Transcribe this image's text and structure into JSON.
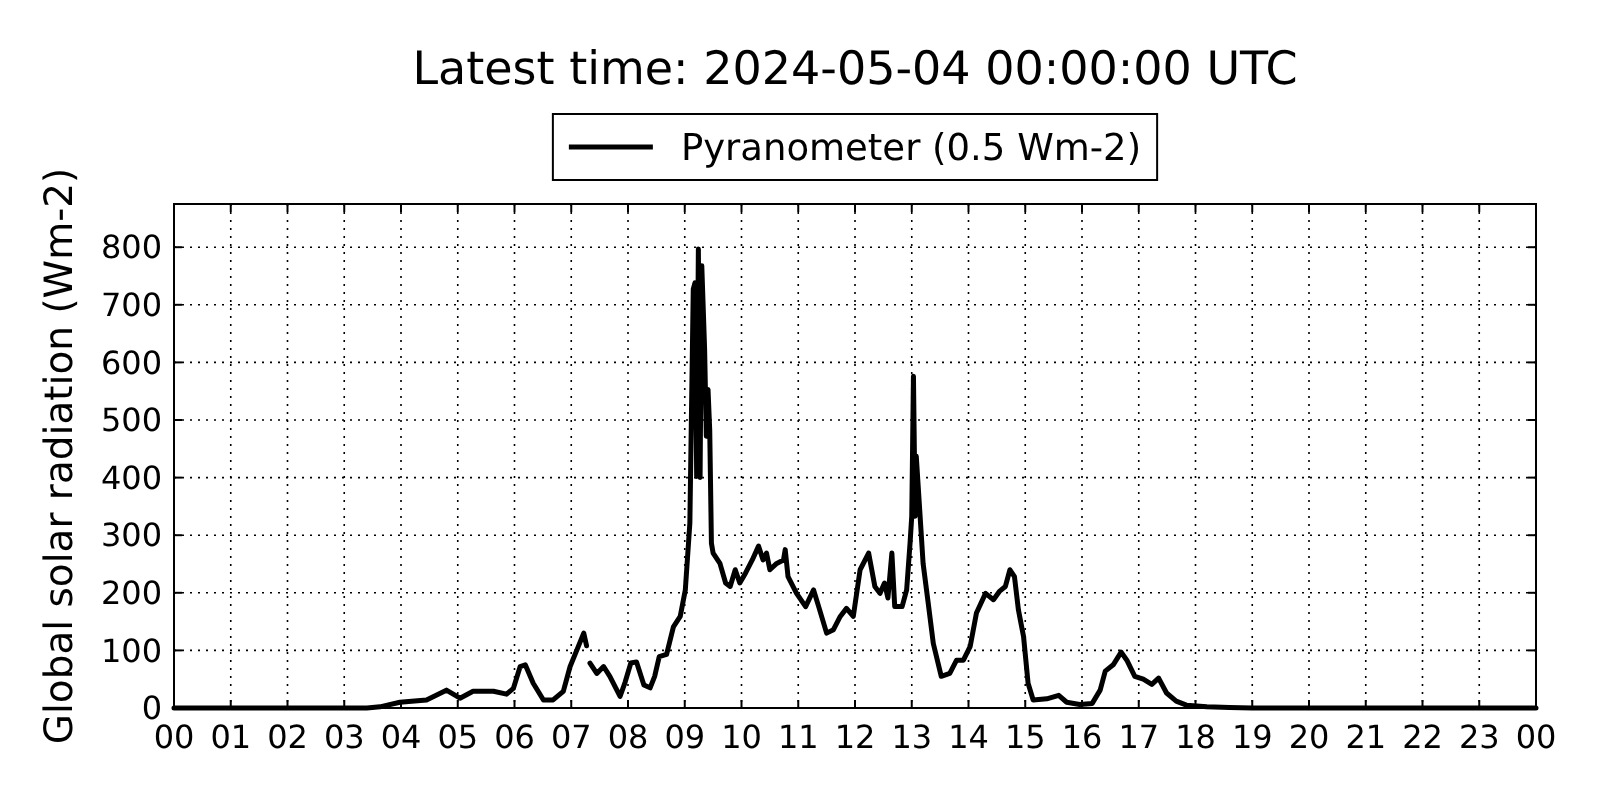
{
  "chart_data": {
    "type": "line",
    "title": "Latest time: 2024-05-04 00:00:00 UTC",
    "ylabel": "Global solar radiation (Wm-2)",
    "x": [
      0,
      1,
      2,
      3,
      3.4,
      3.63,
      3.98,
      4.45,
      4.8,
      5.04,
      5.27,
      5.63,
      5.86,
      5.98,
      6.1,
      6.19,
      6.33,
      6.51,
      6.68,
      6.86,
      6.98,
      7.1,
      7.22,
      7.27,
      7.3,
      7.33,
      7.45,
      7.57,
      7.68,
      7.86,
      7.95,
      8.05,
      8.15,
      8.28,
      8.39,
      8.47,
      8.55,
      8.68,
      8.8,
      8.92,
      9.01,
      9.09,
      9.15,
      9.18,
      9.21,
      9.24,
      9.27,
      9.3,
      9.35,
      9.38,
      9.41,
      9.44,
      9.47,
      9.5,
      9.62,
      9.72,
      9.8,
      9.89,
      9.97,
      10.07,
      10.19,
      10.3,
      10.38,
      10.44,
      10.5,
      10.62,
      10.74,
      10.77,
      10.82,
      10.97,
      11.13,
      11.27,
      11.36,
      11.5,
      11.62,
      11.74,
      11.85,
      11.97,
      12.09,
      12.24,
      12.35,
      12.44,
      12.52,
      12.58,
      12.65,
      12.7,
      12.83,
      12.91,
      12.97,
      13.0,
      13.03,
      13.06,
      13.08,
      13.2,
      13.29,
      13.38,
      13.52,
      13.67,
      13.79,
      13.91,
      14.03,
      14.14,
      14.3,
      14.44,
      14.55,
      14.65,
      14.73,
      14.81,
      14.88,
      14.97,
      15.05,
      15.14,
      15.38,
      15.59,
      15.73,
      15.96,
      16.18,
      16.32,
      16.41,
      16.55,
      16.69,
      16.79,
      16.93,
      17.08,
      17.23,
      17.35,
      17.49,
      17.66,
      17.84,
      18.2,
      18.6,
      19,
      20,
      21,
      22,
      23,
      24
    ],
    "series": [
      {
        "name": "Pyranometer (0.5 Wm-2)",
        "color": "#000000",
        "values": [
          0,
          0,
          0,
          0,
          0,
          2,
          10,
          14,
          31,
          17,
          29,
          29,
          24,
          34,
          72,
          75,
          43,
          14,
          14,
          29,
          72,
          101,
          130,
          108,
          null,
          78,
          60,
          72,
          55,
          20,
          45,
          78,
          80,
          40,
          35,
          55,
          89,
          93,
          141,
          159,
          205,
          321,
          727,
          738,
          402,
          797,
          400,
          768,
          623,
          472,
          553,
          483,
          286,
          269,
          251,
          217,
          211,
          240,
          217,
          234,
          257,
          281,
          257,
          269,
          240,
          251,
          257,
          275,
          228,
          199,
          176,
          205,
          176,
          130,
          136,
          159,
          173,
          159,
          240,
          269,
          211,
          199,
          217,
          191,
          269,
          176,
          176,
          205,
          286,
          333,
          576,
          333,
          437,
          251,
          182,
          112,
          55,
          60,
          83,
          83,
          107,
          165,
          199,
          188,
          203,
          211,
          240,
          228,
          170,
          124,
          43,
          14,
          16,
          22,
          10,
          6,
          8,
          31,
          64,
          75,
          97,
          83,
          55,
          50,
          41,
          52,
          26,
          12,
          5,
          2,
          1,
          0,
          0,
          0,
          0,
          0,
          0
        ]
      }
    ],
    "xlim": [
      0,
      24
    ],
    "xticks": [
      {
        "value": 0,
        "label": "00"
      },
      {
        "value": 1,
        "label": "01"
      },
      {
        "value": 2,
        "label": "02"
      },
      {
        "value": 3,
        "label": "03"
      },
      {
        "value": 4,
        "label": "04"
      },
      {
        "value": 5,
        "label": "05"
      },
      {
        "value": 6,
        "label": "06"
      },
      {
        "value": 7,
        "label": "07"
      },
      {
        "value": 8,
        "label": "08"
      },
      {
        "value": 9,
        "label": "09"
      },
      {
        "value": 10,
        "label": "10"
      },
      {
        "value": 11,
        "label": "11"
      },
      {
        "value": 12,
        "label": "12"
      },
      {
        "value": 13,
        "label": "13"
      },
      {
        "value": 14,
        "label": "14"
      },
      {
        "value": 15,
        "label": "15"
      },
      {
        "value": 16,
        "label": "16"
      },
      {
        "value": 17,
        "label": "17"
      },
      {
        "value": 18,
        "label": "18"
      },
      {
        "value": 19,
        "label": "19"
      },
      {
        "value": 20,
        "label": "20"
      },
      {
        "value": 21,
        "label": "21"
      },
      {
        "value": 22,
        "label": "22"
      },
      {
        "value": 23,
        "label": "23"
      },
      {
        "value": 24,
        "label": "00"
      }
    ],
    "ylim": [
      0,
      875
    ],
    "yticks": [
      0,
      100,
      200,
      300,
      400,
      500,
      600,
      700,
      800
    ],
    "grid": true,
    "legend": "top",
    "line_style": "solid"
  }
}
